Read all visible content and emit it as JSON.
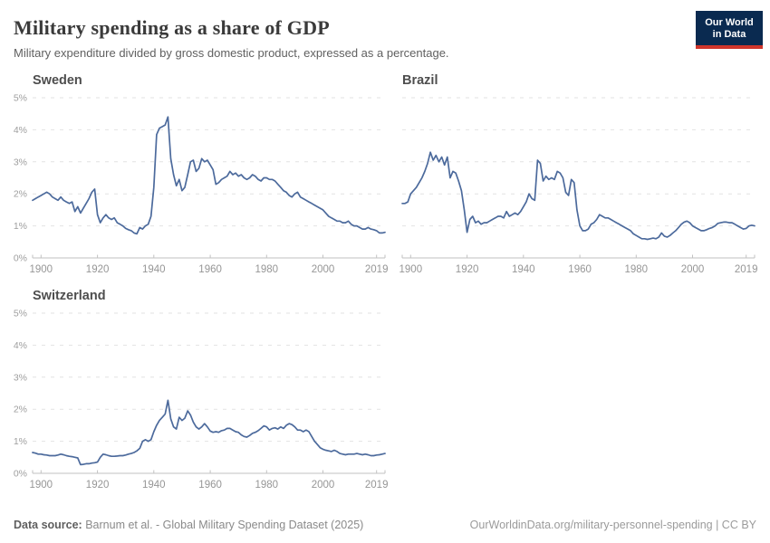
{
  "header": {
    "title": "Military spending as a share of GDP",
    "subtitle": "Military expenditure divided by gross domestic product, expressed as a percentage.",
    "logo": {
      "line1": "Our World",
      "line2": "in Data",
      "bg_color": "#0a2a50",
      "accent_color": "#d0352b"
    }
  },
  "footer": {
    "datasource_label": "Data source:",
    "datasource_text": "Barnum et al. - Global Military Spending Dataset (2025)",
    "url_text": "OurWorldinData.org/military-personnel-spending | CC BY"
  },
  "style": {
    "line_color": "#4c6a9c",
    "grid_color": "#e2e2e2",
    "axis_color": "#c2c2c2"
  },
  "chart_data": [
    {
      "type": "line",
      "title": "Sweden",
      "unit": "% of GDP",
      "x_start": 1897,
      "x_end": 2022,
      "x_ticks": [
        1900,
        1920,
        1940,
        1960,
        1980,
        2000,
        2019
      ],
      "ylim": [
        0,
        5
      ],
      "y_ticks": [
        "0%",
        "1%",
        "2%",
        "3%",
        "4%",
        "5%"
      ],
      "grid": "horizontal-dashed",
      "legend": "none",
      "show_y_labels": true,
      "line_color": "#4c6a9c",
      "values": [
        1.8,
        1.85,
        1.9,
        1.95,
        2.0,
        2.05,
        2.0,
        1.9,
        1.85,
        1.8,
        1.9,
        1.8,
        1.75,
        1.7,
        1.75,
        1.45,
        1.6,
        1.4,
        1.55,
        1.7,
        1.85,
        2.05,
        2.15,
        1.35,
        1.1,
        1.25,
        1.35,
        1.25,
        1.2,
        1.25,
        1.1,
        1.05,
        1.0,
        0.92,
        0.88,
        0.85,
        0.78,
        0.75,
        0.95,
        0.9,
        1.0,
        1.05,
        1.3,
        2.2,
        3.85,
        4.05,
        4.1,
        4.15,
        4.4,
        3.1,
        2.6,
        2.25,
        2.45,
        2.1,
        2.2,
        2.6,
        3.0,
        3.05,
        2.7,
        2.8,
        3.1,
        3.0,
        3.05,
        2.9,
        2.75,
        2.3,
        2.35,
        2.45,
        2.5,
        2.55,
        2.7,
        2.6,
        2.65,
        2.55,
        2.6,
        2.5,
        2.45,
        2.5,
        2.6,
        2.55,
        2.45,
        2.4,
        2.5,
        2.5,
        2.45,
        2.45,
        2.4,
        2.3,
        2.2,
        2.1,
        2.05,
        1.95,
        1.9,
        2.0,
        2.05,
        1.9,
        1.85,
        1.8,
        1.75,
        1.7,
        1.65,
        1.6,
        1.55,
        1.5,
        1.4,
        1.3,
        1.25,
        1.2,
        1.15,
        1.15,
        1.1,
        1.1,
        1.15,
        1.05,
        1.0,
        1.0,
        0.95,
        0.9,
        0.9,
        0.95,
        0.9,
        0.88,
        0.85,
        0.78,
        0.78,
        0.8
      ]
    },
    {
      "type": "line",
      "title": "Brazil",
      "unit": "% of GDP",
      "x_start": 1897,
      "x_end": 2022,
      "x_ticks": [
        1900,
        1920,
        1940,
        1960,
        1980,
        2000,
        2019
      ],
      "ylim": [
        0,
        5
      ],
      "y_ticks": [
        "0%",
        "1%",
        "2%",
        "3%",
        "4%",
        "5%"
      ],
      "grid": "horizontal-dashed",
      "legend": "none",
      "show_y_labels": false,
      "line_color": "#4c6a9c",
      "values": [
        1.7,
        1.7,
        1.75,
        2.0,
        2.1,
        2.2,
        2.35,
        2.5,
        2.7,
        2.95,
        3.3,
        3.05,
        3.2,
        3.0,
        3.15,
        2.9,
        3.15,
        2.5,
        2.7,
        2.65,
        2.4,
        2.1,
        1.5,
        0.8,
        1.2,
        1.3,
        1.1,
        1.15,
        1.05,
        1.1,
        1.1,
        1.15,
        1.2,
        1.25,
        1.3,
        1.3,
        1.25,
        1.45,
        1.3,
        1.35,
        1.4,
        1.35,
        1.45,
        1.6,
        1.75,
        2.0,
        1.85,
        1.8,
        3.05,
        2.95,
        2.4,
        2.55,
        2.45,
        2.5,
        2.45,
        2.7,
        2.65,
        2.5,
        2.05,
        1.95,
        2.45,
        2.35,
        1.5,
        1.0,
        0.85,
        0.85,
        0.9,
        1.05,
        1.1,
        1.2,
        1.35,
        1.3,
        1.25,
        1.25,
        1.2,
        1.15,
        1.1,
        1.05,
        1.0,
        0.95,
        0.9,
        0.85,
        0.75,
        0.7,
        0.65,
        0.6,
        0.6,
        0.58,
        0.6,
        0.62,
        0.6,
        0.65,
        0.78,
        0.68,
        0.65,
        0.7,
        0.78,
        0.85,
        0.95,
        1.05,
        1.12,
        1.15,
        1.1,
        1.0,
        0.95,
        0.9,
        0.85,
        0.85,
        0.88,
        0.92,
        0.95,
        1.0,
        1.08,
        1.1,
        1.12,
        1.12,
        1.1,
        1.1,
        1.05,
        1.0,
        0.95,
        0.9,
        0.92,
        1.0,
        1.02,
        1.0
      ]
    },
    {
      "type": "line",
      "title": "Switzerland",
      "unit": "% of GDP",
      "x_start": 1897,
      "x_end": 2022,
      "x_ticks": [
        1900,
        1920,
        1940,
        1960,
        1980,
        2000,
        2019
      ],
      "ylim": [
        0,
        5
      ],
      "y_ticks": [
        "0%",
        "1%",
        "2%",
        "3%",
        "4%",
        "5%"
      ],
      "grid": "horizontal-dashed",
      "legend": "none",
      "show_y_labels": true,
      "line_color": "#4c6a9c",
      "values": [
        0.65,
        0.63,
        0.6,
        0.6,
        0.58,
        0.57,
        0.55,
        0.55,
        0.55,
        0.57,
        0.6,
        0.58,
        0.55,
        0.53,
        0.52,
        0.5,
        0.48,
        0.27,
        0.28,
        0.3,
        0.3,
        0.32,
        0.33,
        0.35,
        0.5,
        0.6,
        0.58,
        0.55,
        0.53,
        0.53,
        0.54,
        0.55,
        0.55,
        0.57,
        0.6,
        0.62,
        0.65,
        0.7,
        0.78,
        1.0,
        1.05,
        1.0,
        1.05,
        1.3,
        1.5,
        1.65,
        1.75,
        1.85,
        2.28,
        1.7,
        1.45,
        1.38,
        1.75,
        1.65,
        1.72,
        1.95,
        1.82,
        1.6,
        1.45,
        1.38,
        1.45,
        1.55,
        1.45,
        1.32,
        1.28,
        1.3,
        1.28,
        1.33,
        1.35,
        1.4,
        1.4,
        1.35,
        1.3,
        1.28,
        1.2,
        1.15,
        1.13,
        1.18,
        1.25,
        1.28,
        1.33,
        1.4,
        1.48,
        1.45,
        1.35,
        1.4,
        1.42,
        1.38,
        1.45,
        1.4,
        1.5,
        1.55,
        1.52,
        1.45,
        1.35,
        1.35,
        1.3,
        1.35,
        1.3,
        1.15,
        1.0,
        0.9,
        0.8,
        0.75,
        0.72,
        0.7,
        0.68,
        0.72,
        0.68,
        0.62,
        0.6,
        0.58,
        0.6,
        0.6,
        0.6,
        0.62,
        0.6,
        0.58,
        0.6,
        0.58,
        0.55,
        0.55,
        0.57,
        0.58,
        0.6,
        0.62
      ]
    }
  ]
}
